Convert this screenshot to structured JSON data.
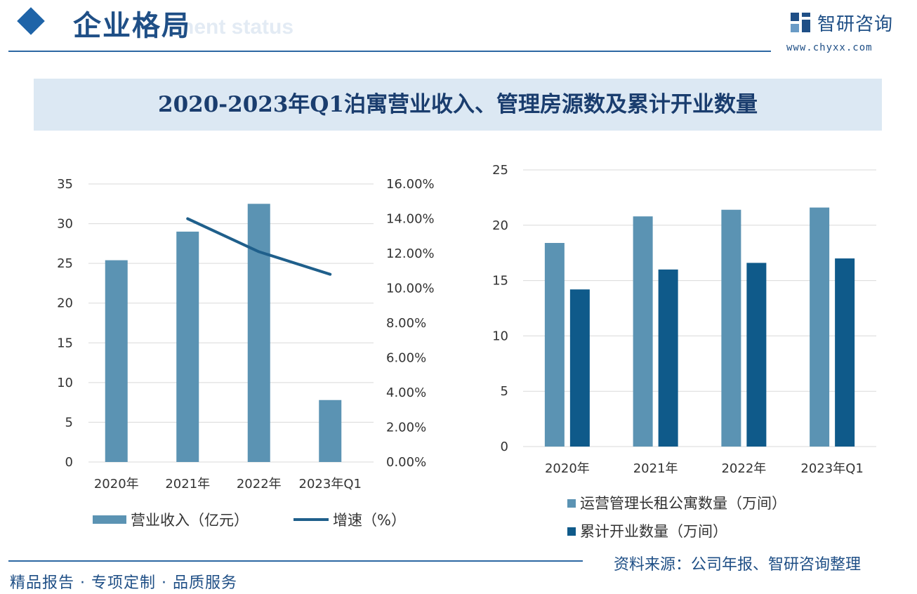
{
  "header": {
    "title": "企业格局",
    "ghost": "nent status",
    "logo_name": "智研咨询",
    "logo_url": "www.chyxx.com"
  },
  "chart_title": "2020-2023年Q1泊寓营业收入、管理房源数及累计开业数量",
  "footer": {
    "left": "精品报告 · 专项定制 · 品质服务",
    "source": "资料来源：公司年报、智研咨询整理"
  },
  "colors": {
    "light_bar": "#5b93b3",
    "dark_bar": "#0f5a8a",
    "line": "#1f5f8b",
    "brand": "#1f4f86"
  },
  "chart_data": [
    {
      "type": "bar",
      "categories": [
        "2020年",
        "2021年",
        "2022年",
        "2023年Q1"
      ],
      "series": [
        {
          "name": "营业收入（亿元）",
          "type": "bar",
          "axis": "left",
          "values": [
            25.4,
            29.0,
            32.5,
            7.8
          ]
        },
        {
          "name": "增速（%）",
          "type": "line",
          "axis": "right",
          "values": [
            null,
            14.0,
            12.1,
            10.8
          ]
        }
      ],
      "ylim": [
        0,
        35
      ],
      "yticks": [
        "0",
        "5",
        "10",
        "15",
        "20",
        "25",
        "30",
        "35"
      ],
      "y2lim": [
        0,
        16
      ],
      "y2ticks": [
        "0.00%",
        "2.00%",
        "4.00%",
        "6.00%",
        "8.00%",
        "10.00%",
        "12.00%",
        "14.00%",
        "16.00%"
      ],
      "grid": true,
      "legend_position": "bottom"
    },
    {
      "type": "bar",
      "categories": [
        "2020年",
        "2021年",
        "2022年",
        "2023年Q1"
      ],
      "series": [
        {
          "name": "运营管理长租公寓数量（万间）",
          "values": [
            18.4,
            20.8,
            21.4,
            21.6
          ]
        },
        {
          "name": "累计开业数量（万间）",
          "values": [
            14.2,
            16.0,
            16.6,
            17.0
          ]
        }
      ],
      "ylim": [
        0,
        25
      ],
      "yticks": [
        "0",
        "5",
        "10",
        "15",
        "20",
        "25"
      ],
      "grid": true,
      "legend_position": "bottom"
    }
  ]
}
